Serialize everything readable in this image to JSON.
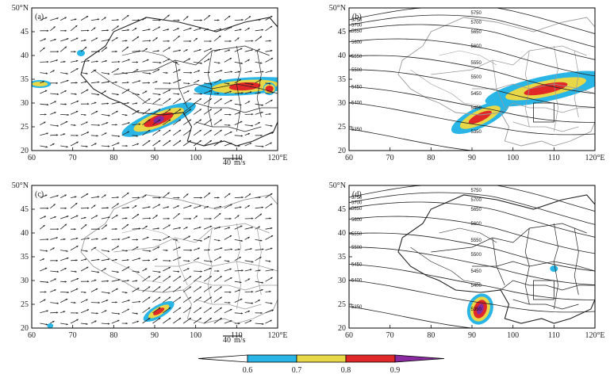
{
  "panels": [
    {
      "label": "(a)",
      "type": "wind",
      "border_color": "#222222",
      "pattern": "a"
    },
    {
      "label": "(b)",
      "type": "height",
      "border_color": "#999999",
      "pattern": "b"
    },
    {
      "label": "(c)",
      "type": "wind",
      "border_color": "#999999",
      "pattern": "c"
    },
    {
      "label": "(d)",
      "type": "height",
      "border_color": "#222222",
      "pattern": "d"
    }
  ],
  "x_ticks": [
    "60",
    "70",
    "80",
    "90",
    "100",
    "110",
    "120°E"
  ],
  "y_ticks": [
    "20",
    "25",
    "30",
    "35",
    "40",
    "45",
    "50°N"
  ],
  "wind_reference": {
    "value": "40",
    "unit": "m/s"
  },
  "contour_labels": [
    "5350",
    "5400",
    "5450",
    "5500",
    "5550",
    "5600",
    "5650",
    "5700",
    "5750"
  ],
  "colorbar": {
    "ticks": [
      "0.6",
      "0.7",
      "0.8",
      "0.9"
    ],
    "colors": [
      "#29b6e6",
      "#e8d848",
      "#e02828",
      "#8a2aa0"
    ]
  },
  "colors": {
    "cyan": "#29b6e6",
    "yellow": "#e8d848",
    "red": "#e02828",
    "purple": "#8a2aa0"
  }
}
